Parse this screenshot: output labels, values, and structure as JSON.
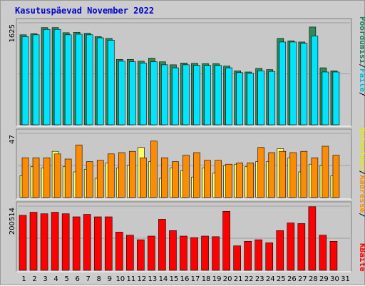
{
  "chart_data": {
    "type": "bar",
    "title": "Kasutuspäevad November 2022",
    "x": [
      "1",
      "2",
      "3",
      "4",
      "5",
      "6",
      "7",
      "8",
      "9",
      "10",
      "11",
      "12",
      "13",
      "14",
      "15",
      "16",
      "17",
      "18",
      "19",
      "20",
      "21",
      "22",
      "23",
      "24",
      "25",
      "26",
      "27",
      "28",
      "29",
      "30",
      "31"
    ],
    "weekend_days": [
      "5",
      "6",
      "12",
      "13",
      "19",
      "20",
      "26",
      "27"
    ],
    "panels": [
      {
        "name": "hits-files-pages",
        "ymax_label": "1625",
        "ylim": [
          0,
          1700
        ],
        "legend_text": [
          "Pöördumisi",
          "/",
          "Faile",
          "/"
        ],
        "series": [
          {
            "name": "Pöördumisi",
            "color": "#2e8b57",
            "values": [
              1500,
              1520,
              1620,
              1620,
              1535,
              1540,
              1525,
              1470,
              1440,
              1090,
              1090,
              1060,
              1110,
              1050,
              1000,
              1030,
              1025,
              1020,
              1020,
              980,
              900,
              880,
              940,
              920,
              1440,
              1400,
              1380,
              1630,
              950,
              900,
              null
            ]
          },
          {
            "name": "Faile",
            "color": "#00e5ff",
            "values": [
              1470,
              1500,
              1590,
              1590,
              1500,
              1510,
              1500,
              1450,
              1410,
              1060,
              1050,
              1030,
              1050,
              1000,
              950,
              1000,
              990,
              990,
              990,
              950,
              870,
              860,
              900,
              890,
              1380,
              1380,
              1360,
              1480,
              880,
              880,
              null
            ]
          }
        ]
      },
      {
        "name": "sites-kbytes-visits",
        "ymax_label": "47",
        "ylim": [
          0,
          50
        ],
        "legend_text": [
          "Külastusi",
          "/",
          "Aadresse",
          "/"
        ],
        "series": [
          {
            "name": "Külastusi",
            "color": "#ffff66",
            "values": [
              17,
              24,
              23,
              36,
              24,
              20,
              22,
              15,
              27,
              23,
              25,
              39,
              28,
              15,
              23,
              21,
              16,
              23,
              19,
              25,
              26,
              24,
              28,
              28,
              38,
              31,
              20,
              26,
              25,
              17,
              null
            ]
          },
          {
            "name": "Aadresse",
            "color": "#ff8c00",
            "values": [
              31,
              31,
              31,
              34,
              30,
              41,
              28,
              29,
              34,
              35,
              36,
              31,
              44,
              31,
              28,
              33,
              35,
              29,
              29,
              26,
              27,
              27,
              39,
              35,
              36,
              35,
              36,
              31,
              40,
              33,
              null
            ]
          }
        ]
      },
      {
        "name": "kbytes",
        "ymax_label": "200514",
        "ylim": [
          0,
          210000
        ],
        "legend_text": [
          "KBaite"
        ],
        "series": [
          {
            "name": "KBaite",
            "color": "#ff0000",
            "values": [
              180000,
              190000,
              185000,
              190000,
              185000,
              175000,
              183000,
              175000,
              175000,
              125000,
              115000,
              100000,
              112000,
              167000,
              130000,
              112000,
              107000,
              112000,
              110000,
              193000,
              80000,
              95000,
              100000,
              90000,
              130000,
              155000,
              153000,
              208000,
              115000,
              95000,
              null
            ]
          }
        ]
      }
    ],
    "colors": {
      "weekday_label": "#000000",
      "weekend_label": "#1e8060",
      "legend_hits": "#1e8060",
      "legend_files": "#00bcd4",
      "legend_visits": "#e6e600",
      "legend_sites": "#ff8c00",
      "legend_kbytes": "#ff0000",
      "title": "#0000cc"
    }
  }
}
